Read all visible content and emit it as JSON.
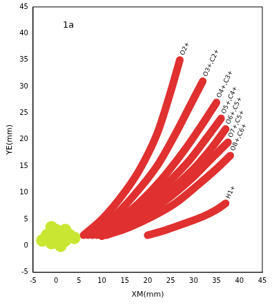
{
  "chart_data": {
    "type": "scatter",
    "x_label": "XM(mm)",
    "y_label": "YE(mm)",
    "xlim": [
      -5,
      45
    ],
    "ylim": [
      -5,
      45
    ],
    "xticks": [
      -5,
      0,
      5,
      10,
      15,
      20,
      25,
      30,
      35,
      40,
      45
    ],
    "yticks": [
      -5,
      0,
      5,
      10,
      15,
      20,
      25,
      30,
      35,
      40,
      45
    ],
    "grid": false,
    "annotations": [
      {
        "text": "1a",
        "x": 1.5,
        "y": 41.5
      }
    ],
    "series": [
      {
        "name": "O2+",
        "color": "#2a9df4",
        "line_style": "solid",
        "x": [
          6,
          10,
          14,
          18,
          22,
          25,
          27
        ],
        "y": [
          2,
          5,
          9,
          14,
          21,
          29,
          35
        ]
      },
      {
        "name": "O3+,C2+",
        "color": "#2a9df4",
        "line_style": "solid",
        "x": [
          7,
          12,
          17,
          22,
          26,
          29,
          32
        ],
        "y": [
          2,
          5,
          9.5,
          15,
          21,
          26,
          31
        ]
      },
      {
        "name": "O4+,C3+",
        "color": "#2a9df4",
        "line_style": "solid",
        "x": [
          8,
          13,
          18,
          23,
          28,
          32,
          35
        ],
        "y": [
          2,
          4.5,
          8,
          12.5,
          18,
          23,
          27
        ]
      },
      {
        "name": "O5+,C4+",
        "color": "#2a9df4",
        "line_style": "solid",
        "x": [
          9,
          14,
          19,
          24,
          29,
          33,
          36
        ],
        "y": [
          2,
          4.5,
          7.5,
          11.5,
          16,
          20.5,
          24
        ]
      },
      {
        "name": "O6+,C5+",
        "color": "#2a9df4",
        "line_style": "solid",
        "x": [
          10,
          15,
          20,
          25,
          30,
          34,
          37
        ],
        "y": [
          2,
          4,
          7,
          10.5,
          14.5,
          18.5,
          22
        ]
      },
      {
        "name": "O7+,C5+",
        "color": "#2a9df4",
        "line_style": "solid",
        "x": [
          10,
          15,
          20,
          25,
          30,
          34,
          37.5
        ],
        "y": [
          1.8,
          3.8,
          6.3,
          9.3,
          13,
          16.5,
          19.5
        ]
      },
      {
        "name": "O8+,C6+",
        "color": "#2a9df4",
        "line_style": "solid",
        "x": [
          11,
          16,
          21,
          26,
          31,
          35,
          38
        ],
        "y": [
          2,
          3.5,
          5.5,
          8,
          11.5,
          14.5,
          17
        ]
      },
      {
        "name": "H1+",
        "color": "#2a9df4",
        "line_style": "solid",
        "x": [
          20,
          24,
          28,
          32,
          35,
          37
        ],
        "y": [
          2,
          3,
          4.2,
          5.5,
          6.8,
          8
        ]
      },
      {
        "color": "#c8e632",
        "marker": "circle",
        "x": [
          0,
          1,
          -1,
          2,
          -2,
          0,
          1,
          3,
          -3,
          4,
          -1,
          2
        ],
        "y": [
          1,
          2,
          0.5,
          1,
          2,
          3,
          0,
          2,
          1,
          1.5,
          3.5,
          3
        ]
      }
    ]
  }
}
